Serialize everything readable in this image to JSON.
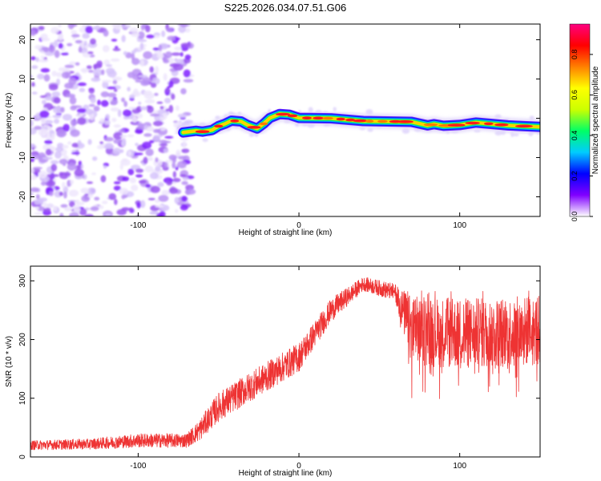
{
  "chart_data": [
    {
      "type": "heatmap",
      "title": "S225.2026.034.07.51.G06",
      "xlabel": "Height of straight line (km)",
      "ylabel": "Frequency (Hz)",
      "xlim": [
        -167,
        150
      ],
      "ylim": [
        -25,
        24
      ],
      "x_ticks": [
        -100,
        0,
        100
      ],
      "x_tick_labels": [
        "-100",
        "0",
        "100"
      ],
      "y_ticks": [
        -20,
        -10,
        0,
        10,
        20
      ],
      "y_tick_labels": [
        "-20",
        "-10",
        "0",
        "10",
        "20"
      ],
      "noise_region_x": [
        -167,
        -71
      ],
      "noise_colors": [
        "#8020ff",
        "#9a55f0",
        "#b890f4",
        "#d6c4fb",
        "#efe6fd"
      ],
      "trace": {
        "x": [
          -72,
          -64,
          -60,
          -54,
          -50,
          -46,
          -42,
          -36,
          -32,
          -26,
          -22,
          -18,
          -12,
          -6,
          0,
          20,
          40,
          70,
          80,
          84,
          90,
          100,
          110,
          130,
          150
        ],
        "y": [
          -3.6,
          -3.2,
          -3.4,
          -3.0,
          -2.0,
          -1.4,
          -0.6,
          -0.8,
          -1.7,
          -2.6,
          -1.4,
          0.1,
          1.1,
          0.9,
          0.1,
          0.0,
          -0.7,
          -0.9,
          -1.8,
          -1.5,
          -1.9,
          -1.7,
          -1.1,
          -1.8,
          -2.2
        ]
      },
      "colorbar": {
        "label": "Normalized spectral amplitude",
        "range": [
          0,
          0.95
        ],
        "ticks": [
          0.0,
          0.2,
          0.4,
          0.6,
          0.8
        ],
        "tick_labels": [
          "0.0",
          "0.2",
          "0.4",
          "0.6",
          "0.8"
        ],
        "gradient": [
          "#ffffff",
          "#8000ff",
          "#0000ff",
          "#00ccff",
          "#00ff66",
          "#ccff00",
          "#ffff00",
          "#ff8000",
          "#ff0000",
          "#ff0080"
        ]
      }
    },
    {
      "type": "line",
      "xlabel": "Height of straight line (km)",
      "ylabel": "SNR (10 * v/v)",
      "xlim": [
        -167,
        150
      ],
      "ylim": [
        0,
        325
      ],
      "x_ticks": [
        -100,
        0,
        100
      ],
      "x_tick_labels": [
        "-100",
        "0",
        "100"
      ],
      "y_ticks": [
        0,
        100,
        200,
        300
      ],
      "y_tick_labels": [
        "0",
        "100",
        "200",
        "300"
      ],
      "color": "#ee3333",
      "envelope": {
        "x": [
          -167,
          -130,
          -100,
          -70,
          -62,
          -50,
          -30,
          0,
          20,
          40,
          60,
          70,
          100,
          150
        ],
        "mean": [
          20,
          22,
          28,
          28,
          45,
          85,
          120,
          170,
          250,
          295,
          280,
          215,
          210,
          215
        ],
        "noise": [
          8,
          9,
          12,
          12,
          18,
          25,
          25,
          25,
          20,
          12,
          15,
          60,
          60,
          60
        ]
      }
    }
  ]
}
